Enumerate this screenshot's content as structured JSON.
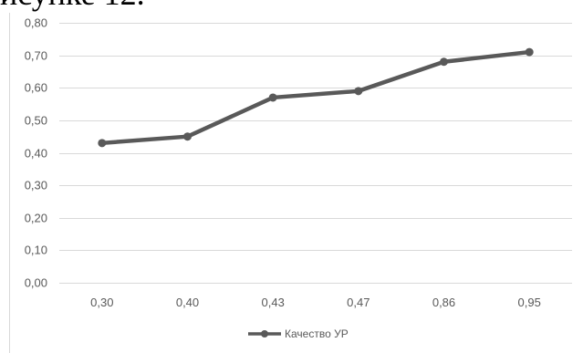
{
  "caption_fragment": "исунке 12.",
  "chart_data": {
    "type": "line",
    "categories": [
      "0,30",
      "0,40",
      "0,43",
      "0,47",
      "0,86",
      "0,95"
    ],
    "series": [
      {
        "name": "Качество УР",
        "values": [
          0.43,
          0.45,
          0.57,
          0.59,
          0.68,
          0.71
        ]
      }
    ],
    "y_ticks": [
      "0,00",
      "0,10",
      "0,20",
      "0,30",
      "0,40",
      "0,50",
      "0,60",
      "0,70",
      "0,80"
    ],
    "ylim": [
      0,
      0.8
    ],
    "grid": true,
    "legend_position": "bottom",
    "colors": {
      "series": "#595959",
      "grid": "#d9d9d9",
      "text": "#595959"
    }
  }
}
